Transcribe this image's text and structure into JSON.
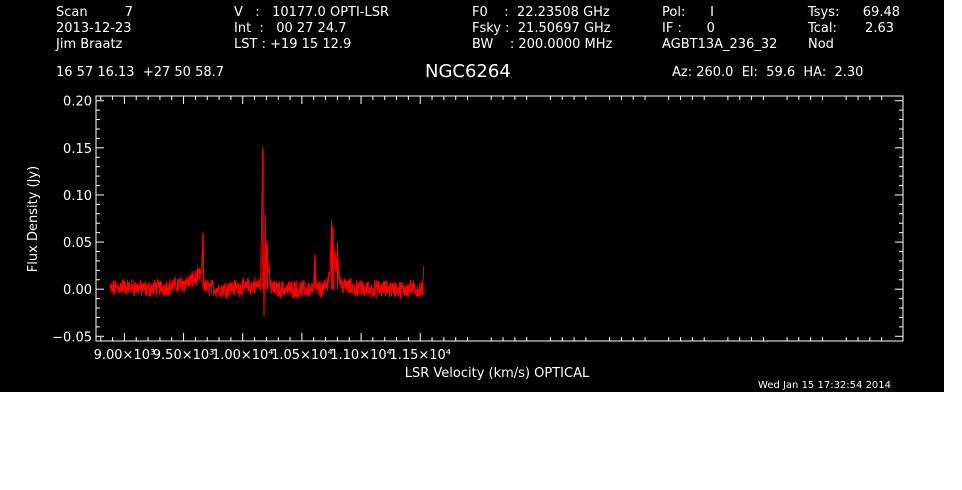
{
  "header": {
    "col1": [
      "Scan         7",
      "2013-12-23",
      "Jim Braatz"
    ],
    "col2": [
      "V   :   10177.0 OPTI-LSR",
      "Int  :   00 27 24.7",
      "LST : +19 15 12.9"
    ],
    "col3": [
      "F0    :  22.23508 GHz",
      "Fsky :  21.50697 GHz",
      "BW    : 200.0000 MHz"
    ],
    "col4": [
      "Pol:      I",
      "IF :      0",
      "AGBT13A_236_32"
    ],
    "col5": [
      "Tsys:",
      "Tcal:",
      "Nod"
    ],
    "col5_vals": [
      "69.48",
      "2.63",
      ""
    ],
    "coords": "16 57 16.13  +27 50 58.7",
    "source": "NGC6264",
    "azel": "Az: 260.0  El:  59.6  HA:  2.30",
    "timestamp": "Wed Jan 15 17:32:54 2014"
  },
  "chart_data": {
    "type": "line",
    "title": "NGC6264",
    "xlabel": "LSR Velocity (km/s) OPTICAL",
    "ylabel": "Flux Density (Jy)",
    "xlim": [
      8760,
      15580
    ],
    "ylim": [
      -0.055,
      0.205
    ],
    "x_ticks": [
      9000,
      9500,
      10000,
      10500,
      11000,
      11500
    ],
    "x_tick_labels": [
      "9.00×10³",
      "9.50×10³",
      "1.00×10⁴",
      "1.05×10⁴",
      "1.10×10⁴",
      "1.15×10⁴"
    ],
    "y_ticks": [
      -0.05,
      0.0,
      0.05,
      0.1,
      0.15,
      0.2
    ],
    "y_tick_labels": [
      "−0.05",
      "0.00",
      "0.05",
      "0.10",
      "0.15",
      "0.20"
    ],
    "grid": false,
    "series_color": "#ff0000",
    "series": [
      {
        "x": [
          8880,
          9000,
          9200,
          9400,
          9550,
          9600,
          9650,
          9665,
          9670,
          9675,
          9690,
          9800,
          10000,
          10150,
          10170,
          10175,
          10180,
          10190,
          10200,
          10205,
          10210,
          10220,
          10230,
          10250,
          10300,
          10500,
          10600,
          10610,
          10620,
          10700,
          10740,
          10750,
          10755,
          10760,
          10770,
          10790,
          10800,
          10810,
          10830,
          10900,
          11000,
          11200,
          11400,
          11520,
          11530
        ],
        "y": [
          0.0,
          0.003,
          0.0,
          0.003,
          0.008,
          0.012,
          0.015,
          0.058,
          0.015,
          0.005,
          0.002,
          0.0,
          0.002,
          0.005,
          0.148,
          0.01,
          -0.02,
          0.08,
          0.02,
          0.05,
          0.035,
          0.02,
          0.005,
          0.0,
          0.0,
          0.0,
          0.0,
          0.037,
          0.0,
          0.0,
          0.02,
          0.072,
          0.03,
          0.06,
          0.045,
          0.02,
          0.05,
          0.015,
          0.005,
          0.002,
          0.0,
          0.0,
          0.0,
          0.0,
          0.02
        ]
      }
    ]
  }
}
